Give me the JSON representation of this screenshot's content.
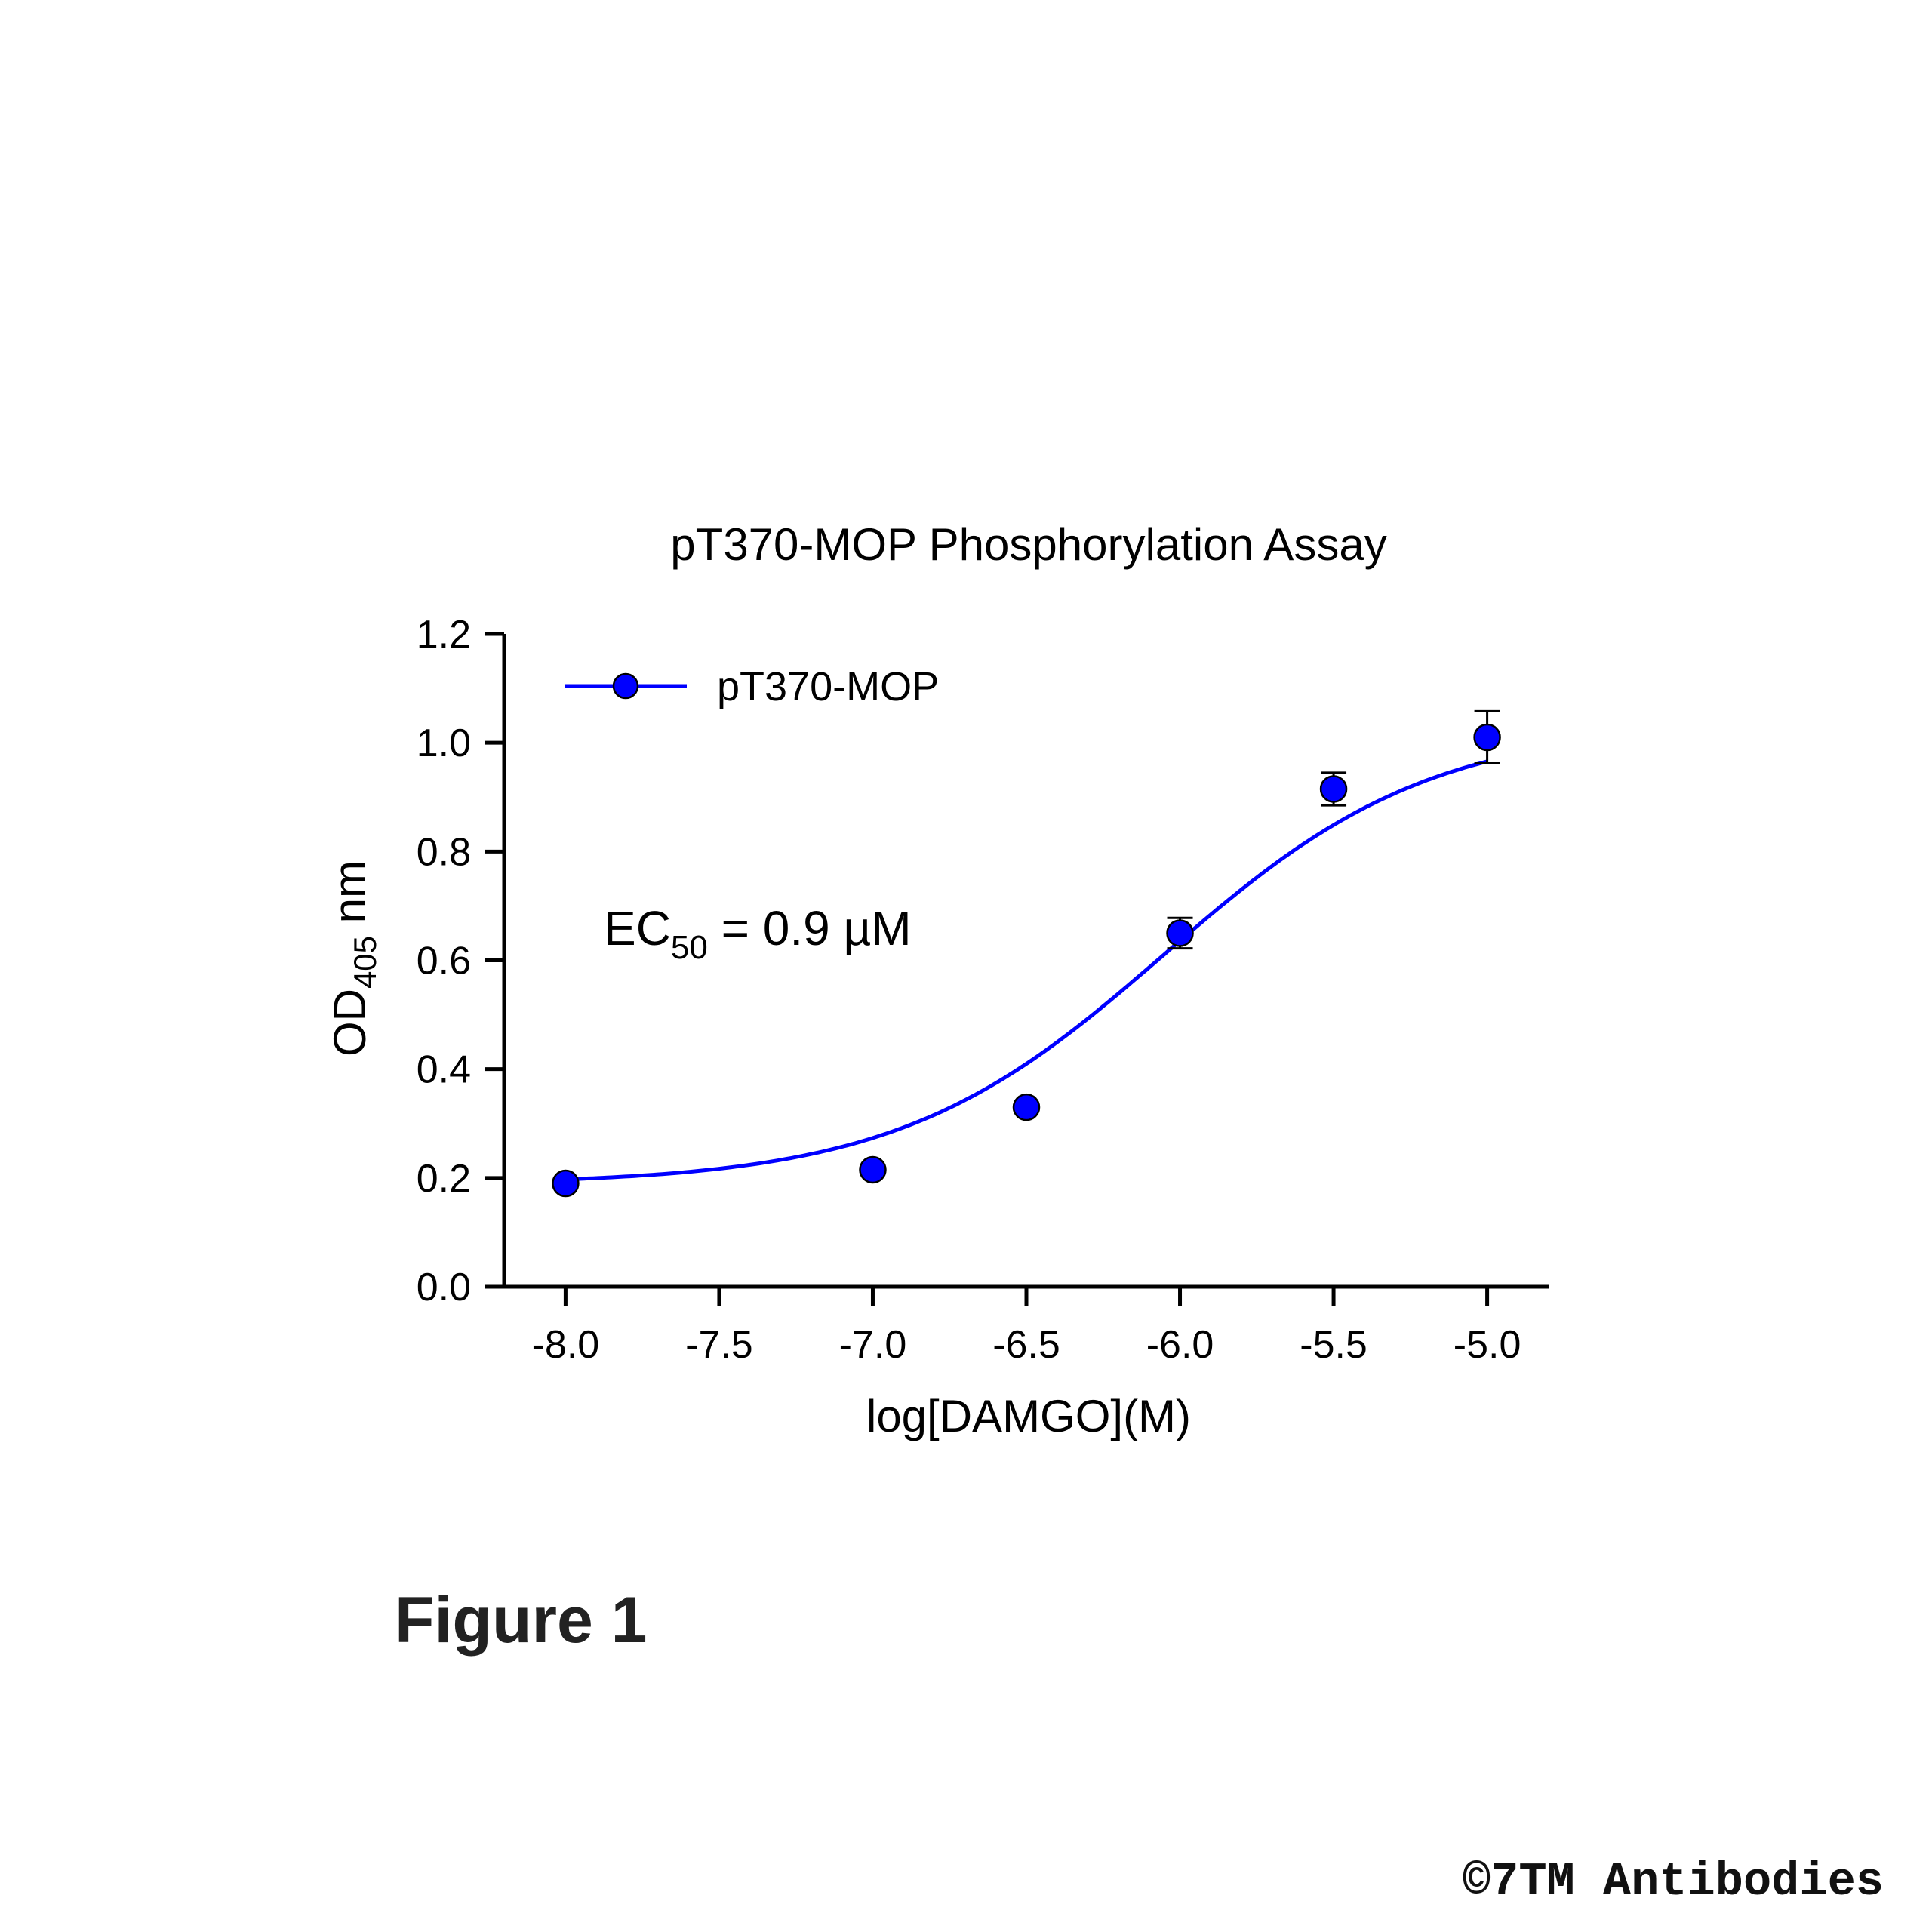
{
  "chart_data": {
    "type": "scatter",
    "title": "pT370-MOP Phosphorylation Assay",
    "xlabel": "log[DAMGO](M)",
    "ylabel": {
      "main": "OD",
      "sub": "405",
      "suffix": " nm"
    },
    "xlim": [
      -8.2,
      -4.8
    ],
    "ylim": [
      0,
      1.2
    ],
    "xticks": [
      -8.0,
      -7.5,
      -7.0,
      -6.5,
      -6.0,
      -5.5,
      -5.0
    ],
    "xtick_labels": [
      "-8.0",
      "-7.5",
      "-7.0",
      "-6.5",
      "-6.0",
      "-5.5",
      "-5.0"
    ],
    "yticks": [
      0.0,
      0.2,
      0.4,
      0.6,
      0.8,
      1.0,
      1.2
    ],
    "ytick_labels": [
      "0.0",
      "0.2",
      "0.4",
      "0.6",
      "0.8",
      "1.0",
      "1.2"
    ],
    "grid": false,
    "legend_position": "top-left",
    "series": [
      {
        "name": "pT370-MOP",
        "color": "#0000ff",
        "x": [
          -8.0,
          -7.0,
          -6.5,
          -6.0,
          -5.5,
          -5.0
        ],
        "y": [
          0.19,
          0.215,
          0.33,
          0.65,
          0.915,
          1.01
        ],
        "error": [
          0.0,
          0.0,
          0.0,
          0.028,
          0.03,
          0.048
        ],
        "fit": {
          "model": "sigmoidal dose-response",
          "bottom": 0.188,
          "top": 1.035,
          "logEC50": -6.05,
          "hill": 1.0
        }
      }
    ],
    "annotation": {
      "main": "EC",
      "sub": "50",
      "suffix": " = 0.9 µM"
    }
  },
  "figure_label": "Figure 1",
  "copyright": "©7TM Antibodies"
}
